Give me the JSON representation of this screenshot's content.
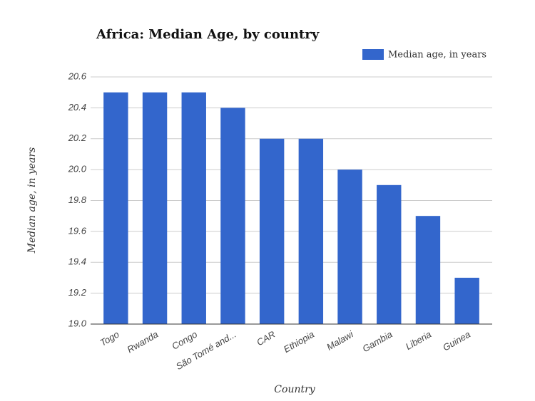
{
  "chart_data": {
    "type": "bar",
    "title": "Africa: Median Age, by country",
    "x_label": "Country",
    "y_label": "Median age, in years",
    "categories": [
      "Togo",
      "Rwanda",
      "Congo",
      "São Tomé and...",
      "CAR",
      "Ethiopia",
      "Malawi",
      "Gambia",
      "Liberia",
      "Guinea"
    ],
    "series": [
      {
        "name": "Median age, in years",
        "color": "#3366cc",
        "values": [
          20.5,
          20.5,
          20.5,
          20.4,
          20.2,
          20.2,
          20.0,
          19.9,
          19.7,
          19.3
        ]
      }
    ],
    "ylim": [
      19.0,
      20.6
    ],
    "yticks": [
      {
        "value": 19,
        "label": "19.0"
      },
      19.2,
      19.4,
      19.6,
      19.8,
      {
        "value": 20,
        "label": "20.0"
      },
      20.2,
      20.4,
      20.6
    ],
    "grid": true,
    "legend_position": "top-right"
  }
}
